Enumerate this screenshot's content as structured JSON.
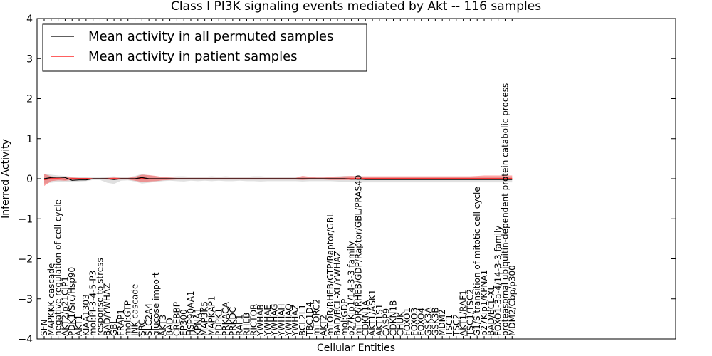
{
  "chart_data": {
    "type": "line",
    "title": "Class I PI3K signaling events mediated by Akt -- 116 samples",
    "xlabel": "Cellular Entities",
    "ylabel": "Inferred Activity",
    "ylim": [
      -4,
      4
    ],
    "yticks": [
      -4,
      -3,
      -2,
      -1,
      0,
      1,
      2,
      3,
      4
    ],
    "grid": false,
    "legend": {
      "position": "top-left",
      "entries": [
        {
          "label": "Mean activity in all permuted samples",
          "color": "#000000"
        },
        {
          "label": "Mean activity in patient samples",
          "color": "#ff0000"
        }
      ]
    },
    "categories": [
      "SFN",
      "MAPKKK cascade",
      "negative regulation of cell cycle",
      "AKT2/p21CIP1",
      "PDK1/Src/Hsp90",
      "AKT1",
      "KIAA1303",
      "mol:PI-3-4-5-P3",
      "response to stress",
      "BAD/YWHAZ",
      "GBL",
      "FRAP1",
      "mol:GTP",
      "JNK cascade",
      "SRC",
      "SLC2A4",
      "glucose import",
      "AKT3",
      "BAD",
      "CREBBP",
      "EP300",
      "HSP90AA1",
      "KPNA1",
      "MAP3K5",
      "MAPKAP1",
      "PDPK1",
      "PRKACA",
      "PRKDC",
      "RAF1",
      "RHEB",
      "RICTOR",
      "YWHAB",
      "YWHAE",
      "YWHAG",
      "YWHAH",
      "YWHAQ",
      "YWHAZ",
      "BCL2L1",
      "TBC1D4",
      "mTORC2",
      "AKT2",
      "mTOR/RHEB/GTP/Raptor/GBL",
      "BAD/BCL-XL/YWHAZ",
      "mol:GDP",
      "p27Kip1/14-3-3 family",
      "mTOR/RHEB/GDP/Raptor/GBL/PRAS40",
      "CDKN1A",
      "AKT1/ASK1",
      "AKT1S1",
      "CASP9",
      "CDKN1B",
      "CHUK",
      "FOXO1",
      "FOXO3",
      "FOXO4",
      "GSK3A",
      "GSK3B",
      "MDM2",
      "TSC1",
      "TSC2",
      "AKT1/RAF1",
      "TSC1/TSC2",
      "G1/S transition of mitotic cell cycle",
      "p27Kip1/KPNA1",
      "BAD/BCL-XL",
      "FOXO1-3a-4/14-3-3 family",
      "proteasomal ubiquitin-dependent protein catabolic process",
      "MDM2/Cbp/p300"
    ],
    "series": [
      {
        "name": "Mean activity in all permuted samples",
        "color": "#000000",
        "values": [
          0.0,
          0.03,
          0.04,
          0.03,
          -0.04,
          -0.03,
          -0.03,
          0.0,
          0.0,
          0.0,
          -0.02,
          0.0,
          0.0,
          0.0,
          0.03,
          0.0,
          0.0,
          0.0,
          0.0,
          0.0,
          0.0,
          0.0,
          0.0,
          0.0,
          0.0,
          0.0,
          0.0,
          0.0,
          0.0,
          0.0,
          0.0,
          0.0,
          0.0,
          0.0,
          0.0,
          0.0,
          0.0,
          0.0,
          0.0,
          0.0,
          0.0,
          0.0,
          0.0,
          0.0,
          -0.01,
          -0.01,
          -0.02,
          -0.02,
          -0.02,
          -0.02,
          -0.02,
          -0.02,
          -0.02,
          -0.02,
          -0.02,
          -0.02,
          -0.02,
          -0.02,
          -0.02,
          -0.02,
          -0.02,
          -0.02,
          -0.02,
          -0.02,
          -0.02,
          -0.02,
          -0.02,
          -0.02
        ],
        "band_lower": [
          -0.12,
          -0.1,
          -0.08,
          -0.07,
          -0.09,
          -0.07,
          -0.06,
          -0.03,
          -0.03,
          -0.1,
          -0.13,
          -0.05,
          -0.04,
          -0.07,
          -0.12,
          -0.1,
          -0.08,
          -0.06,
          -0.05,
          -0.06,
          -0.07,
          -0.05,
          -0.06,
          -0.05,
          -0.06,
          -0.05,
          -0.06,
          -0.06,
          -0.05,
          -0.06,
          -0.06,
          -0.07,
          -0.06,
          -0.06,
          -0.06,
          -0.06,
          -0.06,
          -0.07,
          -0.06,
          -0.06,
          -0.06,
          -0.06,
          -0.07,
          -0.08,
          -0.08,
          -0.09,
          -0.09,
          -0.09,
          -0.09,
          -0.09,
          -0.09,
          -0.09,
          -0.09,
          -0.09,
          -0.09,
          -0.09,
          -0.09,
          -0.09,
          -0.09,
          -0.09,
          -0.09,
          -0.09,
          -0.09,
          -0.09,
          -0.09,
          -0.09,
          -0.09,
          -0.09
        ],
        "band_upper": [
          0.12,
          0.1,
          0.08,
          0.07,
          0.05,
          0.04,
          0.04,
          0.03,
          0.03,
          0.05,
          0.06,
          0.04,
          0.04,
          0.07,
          0.12,
          0.08,
          0.06,
          0.05,
          0.05,
          0.06,
          0.06,
          0.05,
          0.05,
          0.05,
          0.06,
          0.05,
          0.06,
          0.05,
          0.05,
          0.05,
          0.06,
          0.06,
          0.05,
          0.05,
          0.05,
          0.05,
          0.05,
          0.06,
          0.05,
          0.05,
          0.05,
          0.05,
          0.06,
          0.07,
          0.06,
          0.06,
          0.05,
          0.05,
          0.05,
          0.05,
          0.05,
          0.05,
          0.05,
          0.05,
          0.05,
          0.05,
          0.05,
          0.05,
          0.05,
          0.05,
          0.05,
          0.05,
          0.05,
          0.05,
          0.05,
          0.05,
          0.05,
          0.05
        ]
      },
      {
        "name": "Mean activity in patient samples",
        "color": "#ff0000",
        "values": [
          -0.02,
          0.0,
          0.0,
          -0.01,
          0.0,
          0.0,
          0.0,
          0.0,
          0.0,
          0.0,
          0.0,
          0.0,
          0.0,
          0.0,
          0.0,
          0.0,
          0.0,
          0.0,
          0.0,
          0.0,
          0.0,
          0.0,
          0.0,
          0.0,
          0.0,
          0.0,
          0.0,
          0.0,
          0.0,
          0.0,
          0.0,
          0.0,
          0.0,
          0.0,
          0.0,
          0.0,
          0.0,
          0.0,
          0.0,
          0.0,
          0.0,
          0.0,
          0.0,
          0.0,
          0.0,
          0.0,
          0.0,
          0.0,
          0.0,
          0.0,
          0.0,
          0.0,
          0.0,
          0.0,
          0.0,
          0.0,
          0.0,
          0.0,
          0.0,
          0.0,
          0.0,
          0.0,
          0.0,
          0.0,
          0.0,
          0.0,
          0.0,
          0.0
        ],
        "band_lower": [
          -0.18,
          -0.06,
          -0.04,
          -0.05,
          -0.03,
          -0.02,
          -0.02,
          -0.01,
          -0.01,
          -0.02,
          -0.03,
          -0.02,
          -0.02,
          -0.05,
          -0.08,
          -0.07,
          -0.06,
          -0.04,
          -0.03,
          -0.02,
          -0.02,
          -0.02,
          -0.02,
          -0.02,
          -0.02,
          -0.02,
          -0.02,
          -0.02,
          -0.02,
          -0.02,
          -0.02,
          -0.02,
          -0.02,
          -0.02,
          -0.02,
          -0.02,
          -0.02,
          -0.03,
          -0.02,
          -0.02,
          -0.02,
          -0.03,
          -0.03,
          -0.03,
          -0.03,
          -0.02,
          -0.02,
          -0.02,
          -0.02,
          -0.02,
          -0.02,
          -0.02,
          -0.02,
          -0.02,
          -0.02,
          -0.02,
          -0.02,
          -0.02,
          -0.02,
          -0.02,
          -0.02,
          -0.02,
          -0.02,
          -0.02,
          -0.02,
          -0.02,
          -0.02,
          -0.02
        ],
        "band_upper": [
          0.12,
          0.06,
          0.04,
          0.05,
          0.03,
          0.02,
          0.02,
          0.01,
          0.01,
          0.02,
          0.03,
          0.02,
          0.02,
          0.05,
          0.1,
          0.09,
          0.07,
          0.04,
          0.03,
          0.02,
          0.02,
          0.02,
          0.02,
          0.02,
          0.02,
          0.02,
          0.02,
          0.02,
          0.02,
          0.02,
          0.02,
          0.02,
          0.02,
          0.02,
          0.02,
          0.02,
          0.02,
          0.07,
          0.05,
          0.03,
          0.03,
          0.04,
          0.05,
          0.06,
          0.07,
          0.06,
          0.06,
          0.06,
          0.06,
          0.06,
          0.06,
          0.06,
          0.06,
          0.06,
          0.06,
          0.06,
          0.06,
          0.06,
          0.06,
          0.06,
          0.06,
          0.06,
          0.07,
          0.08,
          0.08,
          0.08,
          0.08,
          0.08
        ]
      }
    ]
  }
}
